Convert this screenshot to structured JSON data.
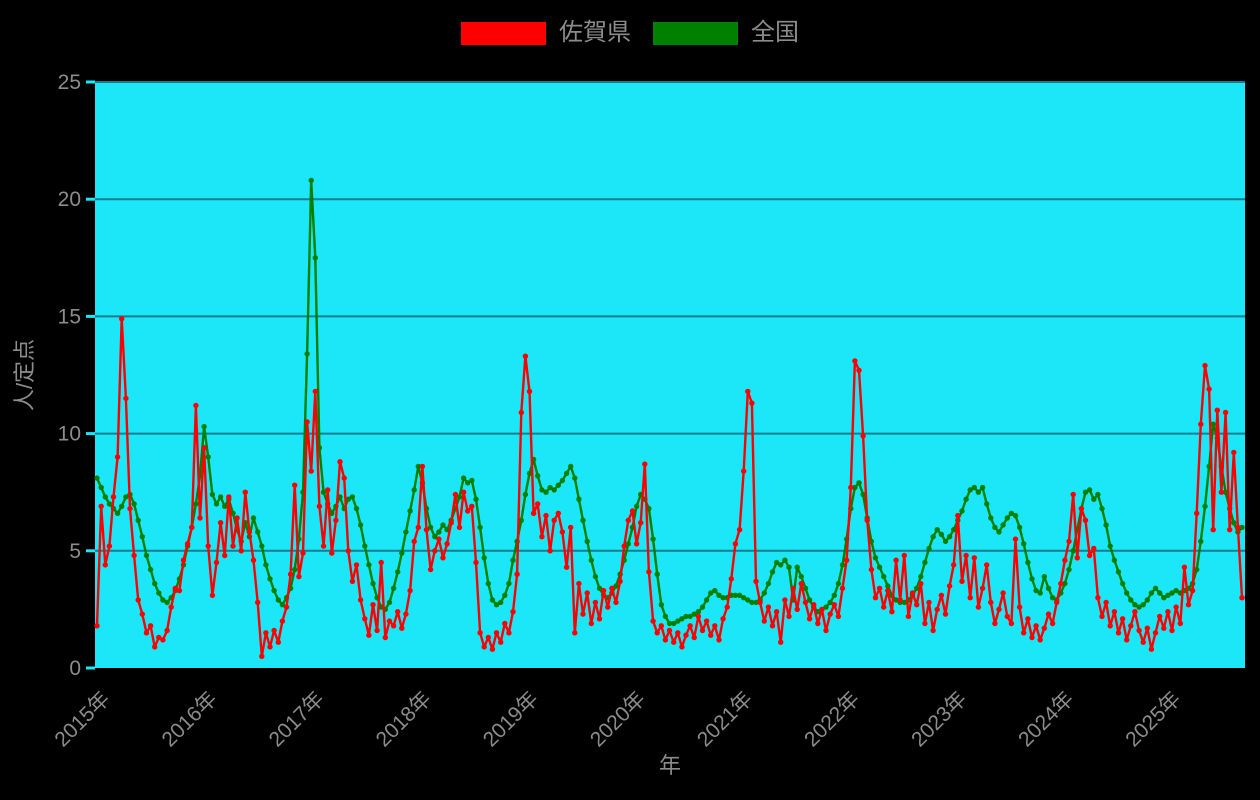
{
  "legend": {
    "items": [
      {
        "id": "saga",
        "label": "佐賀県",
        "color": "#ff0000"
      },
      {
        "id": "national",
        "label": "全国",
        "color": "#008000"
      }
    ]
  },
  "axes": {
    "xlabel": "年",
    "ylabel": "人/定点",
    "ytick_labels": [
      "0",
      "5",
      "10",
      "15",
      "20",
      "25"
    ],
    "xtick_labels": [
      "2015年",
      "2016年",
      "2017年",
      "2018年",
      "2019年",
      "2020年",
      "2021年",
      "2022年",
      "2023年",
      "2024年",
      "2025年"
    ]
  },
  "colors": {
    "page_background": "#000000",
    "plot_background": "#1be7f8",
    "grid_line": "#157d8e",
    "axis_text": "#8c8c8c",
    "saga_red": "#ff0000",
    "national_green": "#008000"
  },
  "chart_data": {
    "type": "line",
    "title": "",
    "xlabel": "年",
    "ylabel": "人/定点",
    "xlim": [
      2014.981,
      2025.72
    ],
    "ylim": [
      0,
      25
    ],
    "yticks": [
      0,
      5,
      10,
      15,
      20,
      25
    ],
    "grid_values": [
      5,
      10,
      15,
      20,
      25
    ],
    "xticks": [
      2015,
      2016,
      2017,
      2018,
      2019,
      2020,
      2021,
      2022,
      2023,
      2024,
      2025
    ],
    "x_start": 2015.0,
    "x_step_years": 0.0384615,
    "sampling": "biweekly (per-sentinel weekly reports, 2015 week 1 to 2025 autumn)",
    "legend_position": "top-center",
    "grid": "horizontal only",
    "series": [
      {
        "name": "佐賀県",
        "color": "#ff0000",
        "values": [
          1.8,
          6.9,
          4.4,
          5.2,
          7.3,
          9.0,
          14.9,
          11.5,
          6.8,
          4.8,
          2.9,
          2.3,
          1.5,
          1.8,
          0.9,
          1.3,
          1.2,
          1.6,
          2.6,
          3.4,
          3.3,
          4.6,
          5.3,
          6.0,
          11.2,
          6.4,
          9.4,
          5.2,
          3.1,
          4.5,
          6.2,
          4.8,
          7.3,
          5.2,
          6.4,
          5.0,
          7.5,
          5.8,
          4.6,
          2.8,
          0.5,
          1.5,
          0.9,
          1.6,
          1.1,
          2.0,
          2.6,
          4.0,
          7.8,
          3.9,
          4.9,
          10.5,
          8.4,
          11.8,
          6.9,
          5.2,
          7.6,
          4.9,
          6.3,
          8.8,
          8.1,
          5.0,
          3.7,
          4.4,
          2.9,
          2.1,
          1.4,
          2.7,
          1.6,
          4.5,
          1.3,
          2.0,
          1.8,
          2.4,
          1.7,
          2.3,
          3.3,
          5.4,
          6.0,
          8.6,
          5.9,
          4.2,
          5.0,
          5.5,
          4.7,
          5.3,
          6.2,
          7.4,
          6.0,
          7.5,
          6.7,
          6.9,
          4.5,
          1.5,
          0.9,
          1.3,
          0.8,
          1.5,
          1.1,
          1.9,
          1.5,
          2.4,
          4.0,
          10.9,
          13.3,
          11.8,
          6.6,
          7.0,
          5.6,
          6.5,
          5.0,
          6.3,
          6.6,
          5.8,
          4.3,
          6.0,
          1.5,
          3.6,
          2.3,
          3.2,
          1.9,
          2.8,
          2.1,
          3.3,
          2.6,
          3.4,
          2.8,
          3.7,
          5.2,
          6.3,
          6.7,
          5.3,
          6.2,
          8.7,
          4.1,
          2.0,
          1.5,
          1.8,
          1.2,
          1.6,
          1.1,
          1.5,
          0.9,
          1.4,
          1.8,
          1.3,
          2.2,
          1.6,
          2.0,
          1.4,
          1.8,
          1.2,
          2.1,
          2.6,
          3.8,
          5.3,
          5.9,
          8.4,
          11.8,
          11.3,
          3.7,
          2.8,
          2.0,
          2.6,
          1.8,
          2.4,
          1.1,
          2.9,
          2.2,
          3.4,
          2.5,
          3.6,
          2.8,
          2.1,
          2.7,
          1.9,
          2.5,
          1.6,
          2.3,
          2.7,
          2.2,
          3.4,
          4.6,
          7.7,
          13.1,
          12.7,
          9.9,
          6.3,
          4.2,
          3.0,
          3.4,
          2.6,
          3.3,
          2.4,
          4.6,
          2.9,
          4.8,
          2.2,
          3.2,
          2.7,
          3.6,
          1.9,
          2.8,
          1.6,
          2.5,
          3.1,
          2.3,
          3.5,
          4.4,
          6.5,
          3.7,
          4.8,
          3.0,
          4.7,
          2.6,
          3.4,
          4.4,
          2.8,
          1.9,
          2.5,
          3.2,
          2.2,
          1.9,
          5.5,
          2.6,
          1.5,
          2.1,
          1.3,
          1.8,
          1.2,
          1.7,
          2.3,
          1.9,
          2.8,
          3.6,
          4.6,
          5.4,
          7.4,
          4.7,
          6.8,
          6.3,
          4.8,
          5.1,
          3.0,
          2.2,
          2.8,
          1.8,
          2.4,
          1.5,
          2.1,
          1.2,
          1.8,
          2.4,
          1.6,
          1.1,
          1.7,
          0.8,
          1.5,
          2.2,
          1.7,
          2.4,
          1.6,
          2.6,
          1.9,
          4.3,
          2.7,
          3.3,
          6.6,
          10.4,
          12.9,
          11.9,
          5.9,
          11.0,
          7.5,
          10.9,
          5.9,
          9.2,
          6.0,
          3.0
        ]
      },
      {
        "name": "全国",
        "color": "#008000",
        "values": [
          8.1,
          7.7,
          7.3,
          7.0,
          6.8,
          6.6,
          6.9,
          7.3,
          7.4,
          7.0,
          6.3,
          5.6,
          4.8,
          4.2,
          3.6,
          3.2,
          2.9,
          2.8,
          3.0,
          3.3,
          3.8,
          4.4,
          5.2,
          6.0,
          7.0,
          8.2,
          10.3,
          9.0,
          7.4,
          7.0,
          7.3,
          6.9,
          7.2,
          6.6,
          5.9,
          5.4,
          6.2,
          5.6,
          6.4,
          5.8,
          5.2,
          4.4,
          3.8,
          3.3,
          2.9,
          2.7,
          3.0,
          3.4,
          4.2,
          5.5,
          7.5,
          13.4,
          20.8,
          17.5,
          9.4,
          7.5,
          7.0,
          6.6,
          6.9,
          7.3,
          6.8,
          7.2,
          7.3,
          6.8,
          6.1,
          5.2,
          4.4,
          3.6,
          3.0,
          2.6,
          2.5,
          2.8,
          3.4,
          4.1,
          4.9,
          5.8,
          6.7,
          7.6,
          8.6,
          7.9,
          6.8,
          6.0,
          5.6,
          5.8,
          6.1,
          5.9,
          6.3,
          6.8,
          7.3,
          8.1,
          7.9,
          8.0,
          7.2,
          6.0,
          4.7,
          3.6,
          2.9,
          2.7,
          2.8,
          3.1,
          3.6,
          4.6,
          5.4,
          6.3,
          7.4,
          8.3,
          8.9,
          8.2,
          7.6,
          7.5,
          7.7,
          7.6,
          7.8,
          8.0,
          8.3,
          8.6,
          8.1,
          7.2,
          6.3,
          5.4,
          4.6,
          3.9,
          3.4,
          3.1,
          3.0,
          3.2,
          3.5,
          4.0,
          4.6,
          5.3,
          6.0,
          6.9,
          7.4,
          7.2,
          6.8,
          5.5,
          4.0,
          2.7,
          2.2,
          1.9,
          1.9,
          2.0,
          2.1,
          2.2,
          2.2,
          2.3,
          2.4,
          2.6,
          2.9,
          3.2,
          3.3,
          3.1,
          3.0,
          3.0,
          3.1,
          3.1,
          3.1,
          3.0,
          2.9,
          2.8,
          2.8,
          2.9,
          3.2,
          3.6,
          4.1,
          4.5,
          4.4,
          4.6,
          4.3,
          2.9,
          4.3,
          3.9,
          3.4,
          2.9,
          2.6,
          2.4,
          2.5,
          2.6,
          2.8,
          3.1,
          3.6,
          4.4,
          5.5,
          6.8,
          7.7,
          7.9,
          7.4,
          6.4,
          5.4,
          4.7,
          4.3,
          3.9,
          3.5,
          3.1,
          2.9,
          2.8,
          2.8,
          2.9,
          3.1,
          3.4,
          3.9,
          4.5,
          5.1,
          5.6,
          5.9,
          5.7,
          5.4,
          5.6,
          5.9,
          6.3,
          6.7,
          7.2,
          7.6,
          7.7,
          7.5,
          7.7,
          7.0,
          6.4,
          6.0,
          5.8,
          6.1,
          6.4,
          6.6,
          6.5,
          6.0,
          5.3,
          4.5,
          3.8,
          3.3,
          3.2,
          3.9,
          3.4,
          3.0,
          2.9,
          3.2,
          3.6,
          4.2,
          5.0,
          5.9,
          6.8,
          7.5,
          7.6,
          7.2,
          7.4,
          6.8,
          6.1,
          5.2,
          4.6,
          4.1,
          3.6,
          3.2,
          2.9,
          2.7,
          2.6,
          2.7,
          2.9,
          3.2,
          3.4,
          3.2,
          3.0,
          3.1,
          3.2,
          3.3,
          3.2,
          3.3,
          3.4,
          3.6,
          4.2,
          5.4,
          6.9,
          8.6,
          10.4,
          9.8,
          8.6,
          7.5,
          6.8,
          6.2,
          5.8,
          6.0
        ]
      }
    ]
  }
}
